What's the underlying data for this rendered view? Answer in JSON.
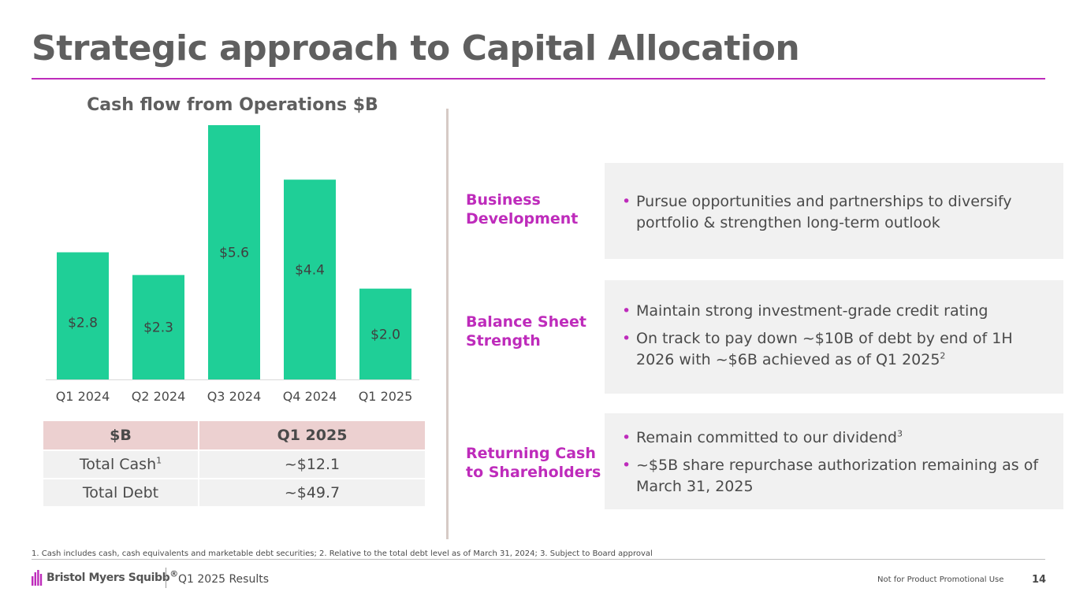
{
  "slide": {
    "title": "Strategic approach to Capital Allocation",
    "accent_color": "#be2bbb",
    "bar_color": "#1fcf97"
  },
  "chart_data": {
    "type": "bar",
    "title": "Cash flow from Operations $B",
    "categories": [
      "Q1 2024",
      "Q2 2024",
      "Q3 2024",
      "Q4 2024",
      "Q1 2025"
    ],
    "values": [
      2.8,
      2.3,
      5.6,
      4.4,
      2.0
    ],
    "value_labels": [
      "$2.8",
      "$2.3",
      "$5.6",
      "$4.4",
      "$2.0"
    ],
    "xlabel": "",
    "ylabel": "",
    "ylim": [
      0,
      5.6
    ],
    "grid": false
  },
  "table": {
    "header": [
      "$B",
      "Q1 2025"
    ],
    "rows": [
      {
        "label": "Total Cash",
        "sup": "1",
        "value": "~$12.1"
      },
      {
        "label": "Total Debt",
        "sup": "",
        "value": "~$49.7"
      }
    ]
  },
  "sections": [
    {
      "label": "Business Development",
      "bullets": [
        {
          "text": "Pursue opportunities and partnerships to diversify portfolio & strengthen long-term outlook",
          "sup": ""
        }
      ]
    },
    {
      "label": "Balance Sheet Strength",
      "bullets": [
        {
          "text": "Maintain strong investment-grade credit rating",
          "sup": ""
        },
        {
          "text": "On track to pay down ~$10B of debt by end of 1H 2026 with ~$6B achieved as of Q1 2025",
          "sup": "2"
        }
      ]
    },
    {
      "label": "Returning Cash to Shareholders",
      "bullets": [
        {
          "text": "Remain committed to our dividend",
          "sup": "3"
        },
        {
          "text": "~$5B share repurchase authorization remaining as of March 31, 2025",
          "sup": ""
        }
      ]
    }
  ],
  "footer": {
    "footnote": "1. Cash includes cash, cash equivalents and marketable debt securities; 2. Relative to the total debt level as of March 31, 2024; 3. Subject to Board approval",
    "logo_text": "Bristol Myers Squibb",
    "logo_mark": "®",
    "results_label": "Q1 2025 Results",
    "promo_notice": "Not for Product Promotional Use",
    "page_number": "14"
  }
}
